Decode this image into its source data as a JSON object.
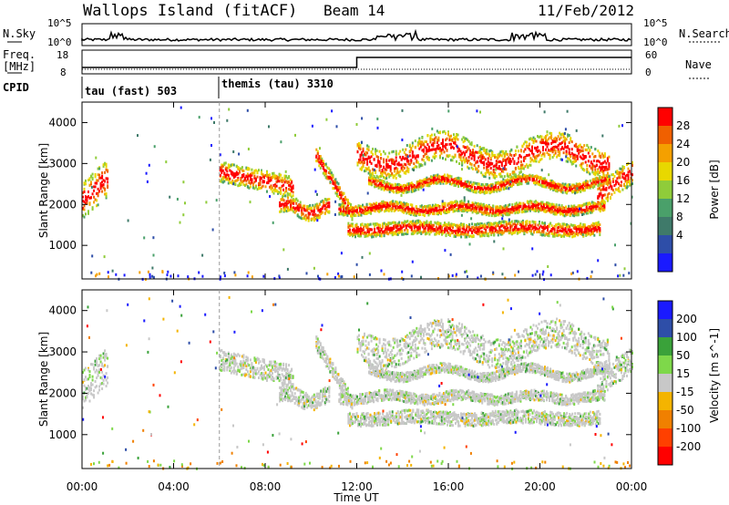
{
  "header": {
    "title": "Wallops Island (fitACF)",
    "beam": "Beam 14",
    "date": "11/Feb/2012"
  },
  "top_panels": {
    "nsky_label": "N.Sky",
    "nsearch_label": "N.Search",
    "nsky_ticks": [
      "10^5",
      "10^0"
    ],
    "nsearch_ticks": [
      "10^5",
      "10^0"
    ],
    "freq_label": "Freq.",
    "freq_unit": "[MHz]",
    "freq_ticks": [
      "18",
      "8"
    ],
    "nave_label": "Nave",
    "nave_ticks": [
      "60",
      "0"
    ],
    "cpid_label": "CPID",
    "cpid_segments": [
      {
        "label": "tau (fast) 503",
        "start_hour": 0
      },
      {
        "label": "themis (tau) 3310",
        "start_hour": 6
      }
    ]
  },
  "colors": {
    "power_scale": [
      "#1a1aff",
      "#2e4ea8",
      "#3f7a6a",
      "#4aa06a",
      "#8fcc3a",
      "#e8d800",
      "#f4a000",
      "#f06000",
      "#ff0000"
    ],
    "velocity_scale": [
      "#1a1aff",
      "#2e4ea8",
      "#3aa23a",
      "#7ed84a",
      "#c8c8c8",
      "#f4b400",
      "#f08000",
      "#ff4000",
      "#ff0000"
    ]
  },
  "chart_data": [
    {
      "type": "heatmap",
      "title": "",
      "xlabel": "Time UT",
      "ylabel": "Slant Range [km]",
      "x_ticks": [
        "00:00",
        "04:00",
        "08:00",
        "12:00",
        "16:00",
        "20:00",
        "00:00"
      ],
      "x_range_hours": [
        0,
        24
      ],
      "ylim": [
        180,
        4500
      ],
      "y_ticks": [
        1000,
        2000,
        3000,
        4000
      ],
      "colorbar_label": "Power [dB]",
      "colorbar_ticks": [
        4,
        8,
        12,
        16,
        20,
        24,
        28
      ],
      "features": [
        {
          "t0": 0.0,
          "t1": 1.1,
          "r0": 1500,
          "r1": 3000
        },
        {
          "t0": 6.0,
          "t1": 11.0,
          "r0": 1700,
          "r1": 3300
        },
        {
          "t0": 11.5,
          "t1": 23.0,
          "r0": 1100,
          "r1": 1700
        },
        {
          "t0": 11.0,
          "t1": 23.0,
          "r0": 2000,
          "r1": 3500
        }
      ]
    },
    {
      "type": "heatmap",
      "title": "",
      "xlabel": "Time UT",
      "ylabel": "Slant Range [km]",
      "x_ticks": [
        "00:00",
        "04:00",
        "08:00",
        "12:00",
        "16:00",
        "20:00",
        "00:00"
      ],
      "x_range_hours": [
        0,
        24
      ],
      "ylim": [
        180,
        4500
      ],
      "y_ticks": [
        1000,
        2000,
        3000,
        4000
      ],
      "colorbar_label": "Velocity [m s^-1]",
      "colorbar_ticks": [
        200,
        100,
        50,
        15,
        -15,
        -50,
        -100,
        -200
      ]
    }
  ]
}
